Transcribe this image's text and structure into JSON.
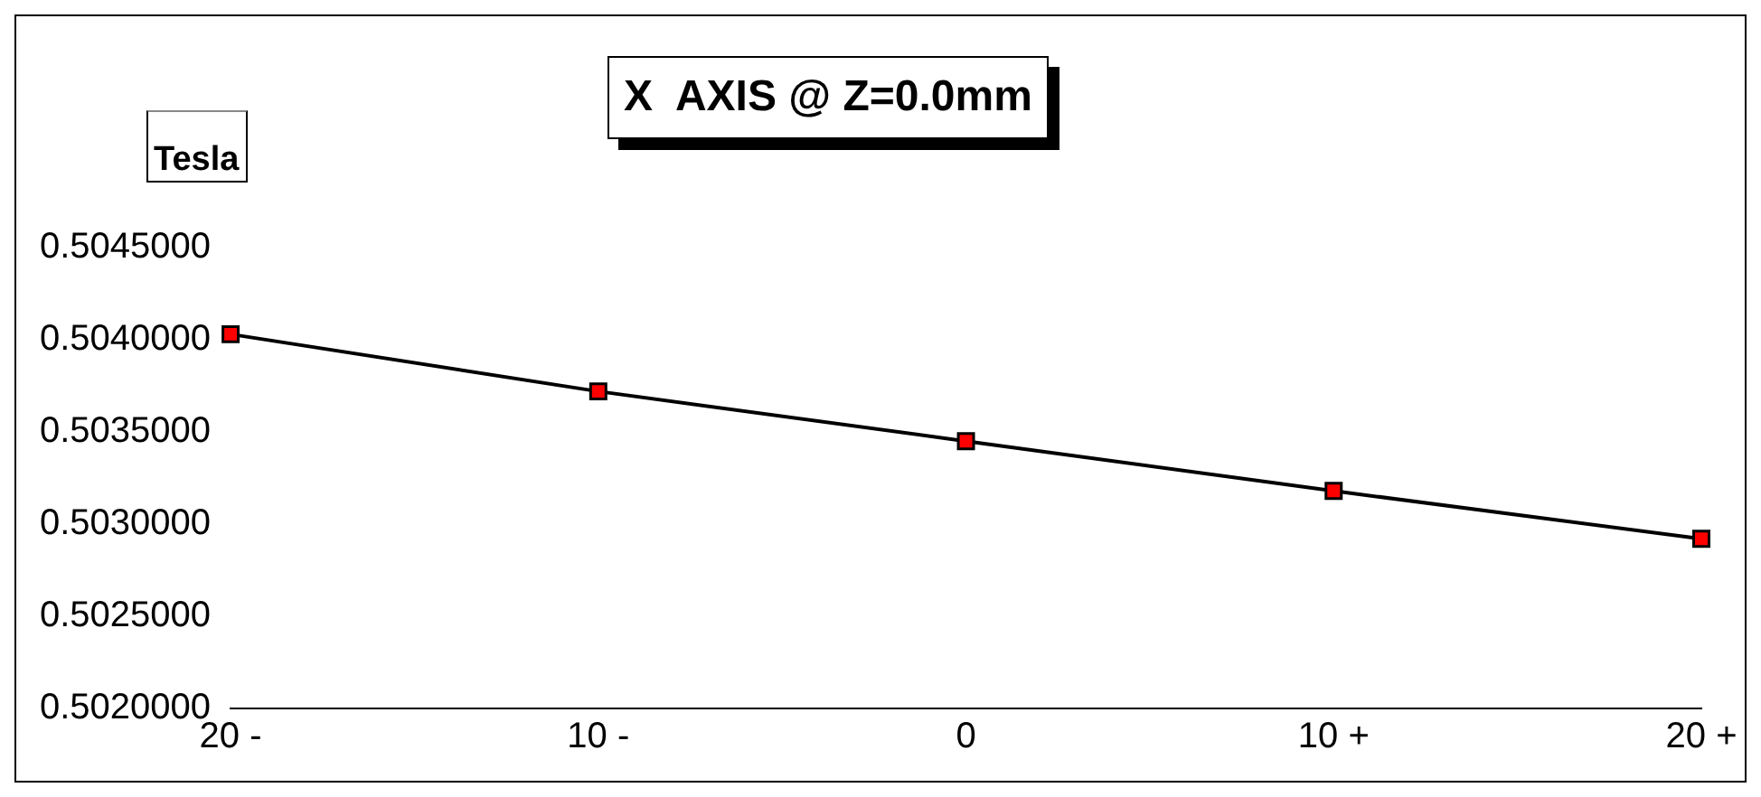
{
  "chart_data": {
    "type": "line",
    "title": "X  AXIS @ Z=0.0mm",
    "ylabel": "Tesla",
    "categories": [
      "20 -",
      "10 -",
      "0",
      "10 +",
      "20 +"
    ],
    "series": [
      {
        "color": "#000000",
        "values": [
          0.50403,
          0.50372,
          0.50345,
          0.50318,
          0.50292
        ]
      }
    ],
    "marker": "square",
    "line_style": "solid",
    "grid": false,
    "legend": false,
    "ylim": [
      0.502,
      0.5045
    ],
    "yticks": [
      {
        "value": 0.502,
        "label": "0.5020000"
      },
      {
        "value": 0.5025,
        "label": "0.5025000"
      },
      {
        "value": 0.503,
        "label": "0.5030000"
      },
      {
        "value": 0.5035,
        "label": "0.5035000"
      },
      {
        "value": 0.504,
        "label": "0.5040000"
      },
      {
        "value": 0.5045,
        "label": "0.5045000"
      }
    ]
  }
}
